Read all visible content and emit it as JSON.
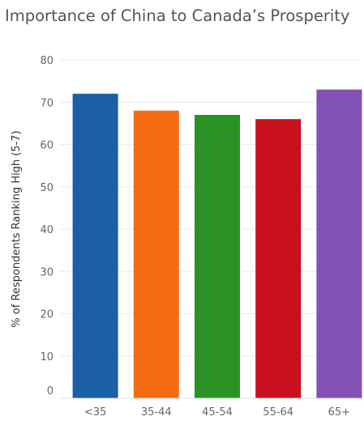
{
  "chart_data": {
    "type": "bar",
    "title": "Importance of China to Canada’s Prosperity",
    "xlabel": "",
    "ylabel": "% of Respondents Ranking High (5-7)",
    "categories": [
      "<35",
      "35-44",
      "45-54",
      "55-64",
      "65+"
    ],
    "values": [
      72,
      68,
      67,
      66,
      73
    ],
    "colors": [
      "#1b5fa6",
      "#f66c12",
      "#2a9225",
      "#c8101f",
      "#8350b3"
    ],
    "ylim": [
      0,
      80
    ],
    "yticks": [
      0,
      10,
      20,
      30,
      40,
      50,
      60,
      70,
      80
    ],
    "grid": true,
    "legend": "none"
  }
}
